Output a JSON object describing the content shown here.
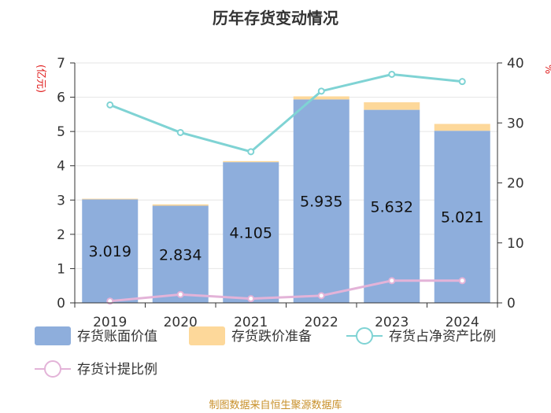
{
  "chart_data": {
    "type": "bar",
    "title": "历年存货变动情况",
    "categories": [
      "2019",
      "2020",
      "2021",
      "2022",
      "2023",
      "2024"
    ],
    "y_left": {
      "unit": "(亿元)",
      "ylim": [
        0,
        7
      ],
      "ticks": [
        0,
        1,
        2,
        3,
        4,
        5,
        6,
        7
      ]
    },
    "y_right": {
      "unit": "%",
      "ylim": [
        0,
        40
      ],
      "ticks": [
        0,
        10,
        20,
        30,
        40
      ]
    },
    "series": [
      {
        "name": "存货账面价值",
        "kind": "bar",
        "stack": "inv",
        "axis": "left",
        "color": "#8eaedc",
        "values": [
          3.019,
          2.834,
          4.105,
          5.935,
          5.632,
          5.021
        ],
        "labels": [
          "3.019",
          "2.834",
          "4.105",
          "5.935",
          "5.632",
          "5.021"
        ]
      },
      {
        "name": "存货跌价准备",
        "kind": "bar",
        "stack": "inv",
        "axis": "left",
        "color": "#fdd89a",
        "values": [
          0.02,
          0.04,
          0.03,
          0.09,
          0.22,
          0.2
        ]
      },
      {
        "name": "存货占净资产比例",
        "kind": "line",
        "axis": "right",
        "color": "#7fd3d4",
        "values": [
          33.0,
          28.4,
          25.2,
          35.3,
          38.1,
          36.9
        ]
      },
      {
        "name": "存货计提比例",
        "kind": "line",
        "axis": "right",
        "color": "#e3b3d8",
        "values": [
          0.3,
          1.4,
          0.7,
          1.2,
          3.7,
          3.7
        ]
      }
    ],
    "grid": true,
    "legend_position": "bottom"
  },
  "footer": {
    "source": "制图数据来自恒生聚源数据库"
  }
}
